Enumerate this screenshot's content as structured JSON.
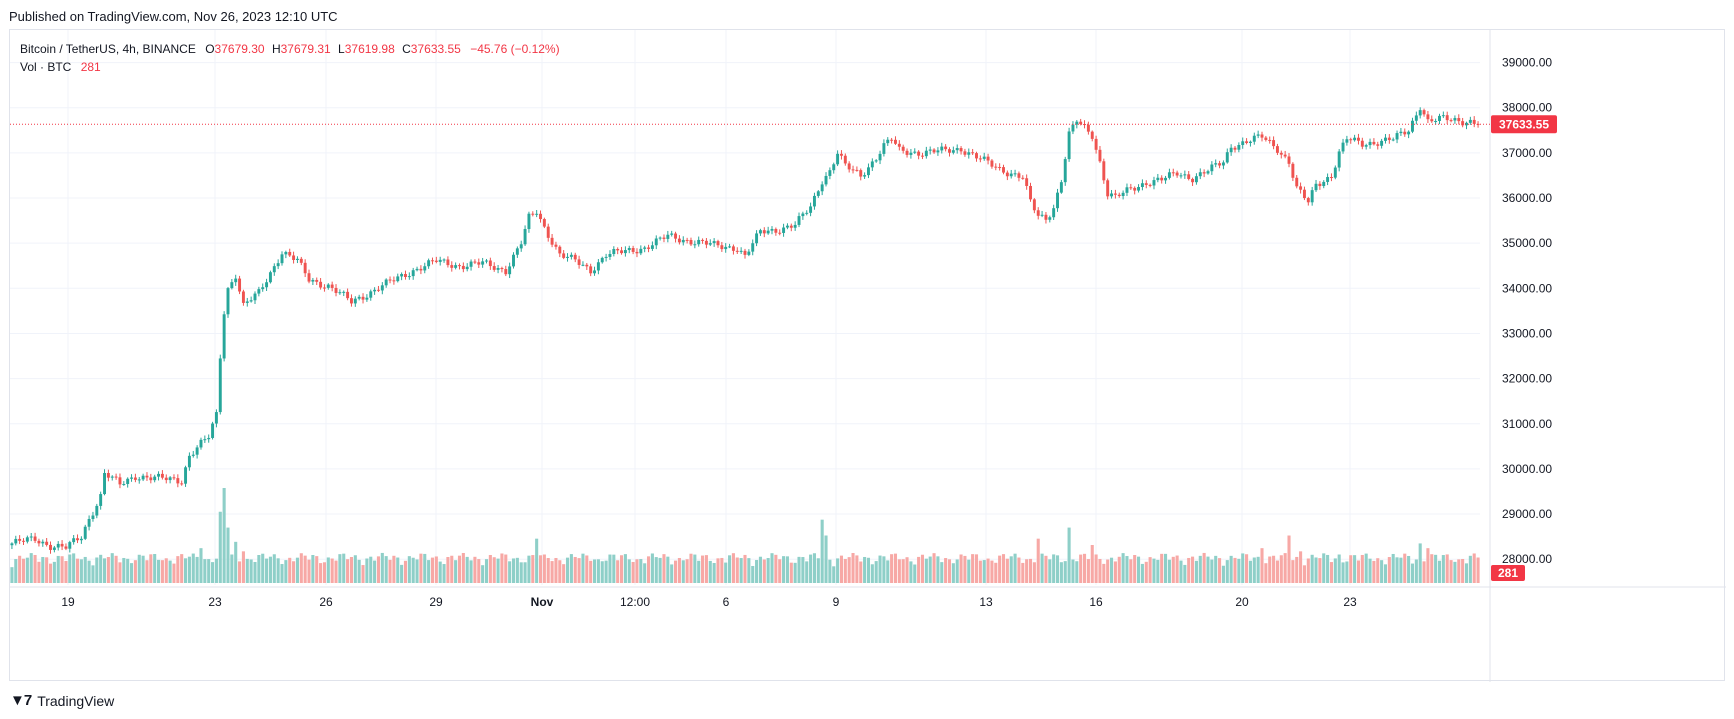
{
  "header": {
    "published": "Published on TradingView.com, Nov 26, 2023 12:10 UTC"
  },
  "legend": {
    "symbol": "Bitcoin / TetherUS, 4h, BINANCE",
    "o_label": "O",
    "o": "37679.30",
    "h_label": "H",
    "h": "37679.31",
    "l_label": "L",
    "l": "37619.98",
    "c_label": "C",
    "c": "37633.55",
    "change": "−45.76 (−0.12%)",
    "vol_label": "Vol · BTC",
    "vol": "281"
  },
  "footer": {
    "brand": "TradingView"
  },
  "colors": {
    "up": "#26a69a",
    "down": "#ef5350",
    "vol_up": "#8ecfc8",
    "vol_down": "#f7a8a5",
    "grid": "#f0f3fa",
    "price_line": "#f23645"
  },
  "chart_data": {
    "type": "candlestick",
    "y_axis": {
      "ticks": [
        "39000.00",
        "38000.00",
        "37000.00",
        "36000.00",
        "35000.00",
        "34000.00",
        "33000.00",
        "32000.00",
        "31000.00",
        "30000.00",
        "29000.00",
        "28000.00"
      ],
      "range": [
        27650,
        39500
      ]
    },
    "x_axis": {
      "ticks": [
        "19",
        "23",
        "26",
        "29",
        "Nov",
        "12:00",
        "6",
        "9",
        "13",
        "16",
        "20",
        "23"
      ]
    },
    "last_price_label": "37633.55",
    "last_price": 37633.55,
    "volume_label": "281",
    "anchors": [
      [
        0,
        28350
      ],
      [
        6,
        28450
      ],
      [
        10,
        28300
      ],
      [
        14,
        28250
      ],
      [
        18,
        28500
      ],
      [
        20,
        28900
      ],
      [
        23,
        29400
      ],
      [
        24,
        29900
      ],
      [
        28,
        29650
      ],
      [
        32,
        29850
      ],
      [
        36,
        29800
      ],
      [
        44,
        29750
      ],
      [
        46,
        30300
      ],
      [
        49,
        30550
      ],
      [
        51,
        30700
      ],
      [
        53,
        31200
      ],
      [
        54,
        32500
      ],
      [
        55,
        33500
      ],
      [
        56,
        34000
      ],
      [
        58,
        34300
      ],
      [
        60,
        33600
      ],
      [
        64,
        33900
      ],
      [
        70,
        34800
      ],
      [
        74,
        34600
      ],
      [
        77,
        34200
      ],
      [
        82,
        34050
      ],
      [
        88,
        33700
      ],
      [
        96,
        34050
      ],
      [
        104,
        34400
      ],
      [
        110,
        34600
      ],
      [
        116,
        34500
      ],
      [
        122,
        34550
      ],
      [
        128,
        34400
      ],
      [
        132,
        35000
      ],
      [
        134,
        35550
      ],
      [
        136,
        35700
      ],
      [
        138,
        35350
      ],
      [
        142,
        34750
      ],
      [
        146,
        34600
      ],
      [
        150,
        34400
      ],
      [
        154,
        34750
      ],
      [
        158,
        34800
      ],
      [
        164,
        34900
      ],
      [
        170,
        35150
      ],
      [
        176,
        35050
      ],
      [
        182,
        34950
      ],
      [
        188,
        34900
      ],
      [
        190,
        34700
      ],
      [
        194,
        35250
      ],
      [
        198,
        35300
      ],
      [
        203,
        35400
      ],
      [
        207,
        35800
      ],
      [
        210,
        36400
      ],
      [
        212,
        36600
      ],
      [
        214,
        37000
      ],
      [
        216,
        36700
      ],
      [
        220,
        36500
      ],
      [
        224,
        36900
      ],
      [
        226,
        37150
      ],
      [
        228,
        37300
      ],
      [
        230,
        37050
      ],
      [
        236,
        37000
      ],
      [
        242,
        37050
      ],
      [
        246,
        37100
      ],
      [
        250,
        36900
      ],
      [
        256,
        36650
      ],
      [
        262,
        36450
      ],
      [
        264,
        35900
      ],
      [
        266,
        35600
      ],
      [
        268,
        35550
      ],
      [
        270,
        35800
      ],
      [
        272,
        36400
      ],
      [
        274,
        37400
      ],
      [
        276,
        37700
      ],
      [
        280,
        37400
      ],
      [
        282,
        36800
      ],
      [
        284,
        36100
      ],
      [
        286,
        36000
      ],
      [
        290,
        36200
      ],
      [
        294,
        36350
      ],
      [
        298,
        36400
      ],
      [
        302,
        36550
      ],
      [
        306,
        36450
      ],
      [
        310,
        36600
      ],
      [
        314,
        36800
      ],
      [
        316,
        37150
      ],
      [
        320,
        37250
      ],
      [
        324,
        37350
      ],
      [
        328,
        37100
      ],
      [
        331,
        36800
      ],
      [
        333,
        36200
      ],
      [
        336,
        35900
      ],
      [
        338,
        36300
      ],
      [
        342,
        36500
      ],
      [
        344,
        37000
      ],
      [
        346,
        37300
      ],
      [
        350,
        37200
      ],
      [
        354,
        37250
      ],
      [
        358,
        37300
      ],
      [
        362,
        37500
      ],
      [
        365,
        38050
      ],
      [
        367,
        37700
      ],
      [
        371,
        37750
      ],
      [
        378,
        37700
      ],
      [
        380,
        37633
      ]
    ],
    "n_candles": 381,
    "volume_spikes": [
      [
        49,
        2.2
      ],
      [
        54,
        4.5
      ],
      [
        55,
        6.0
      ],
      [
        56,
        3.5
      ],
      [
        58,
        2.6
      ],
      [
        60,
        2.0
      ],
      [
        74,
        1.6
      ],
      [
        136,
        2.8
      ],
      [
        138,
        1.8
      ],
      [
        150,
        1.4
      ],
      [
        199,
        1.5
      ],
      [
        210,
        4.0
      ],
      [
        211,
        3.0
      ],
      [
        266,
        2.8
      ],
      [
        274,
        3.5
      ],
      [
        280,
        2.4
      ],
      [
        324,
        2.2
      ],
      [
        331,
        3.0
      ],
      [
        334,
        2.0
      ],
      [
        344,
        1.8
      ],
      [
        365,
        2.5
      ],
      [
        367,
        2.2
      ]
    ],
    "volume_range": [
      0,
      240
    ]
  }
}
